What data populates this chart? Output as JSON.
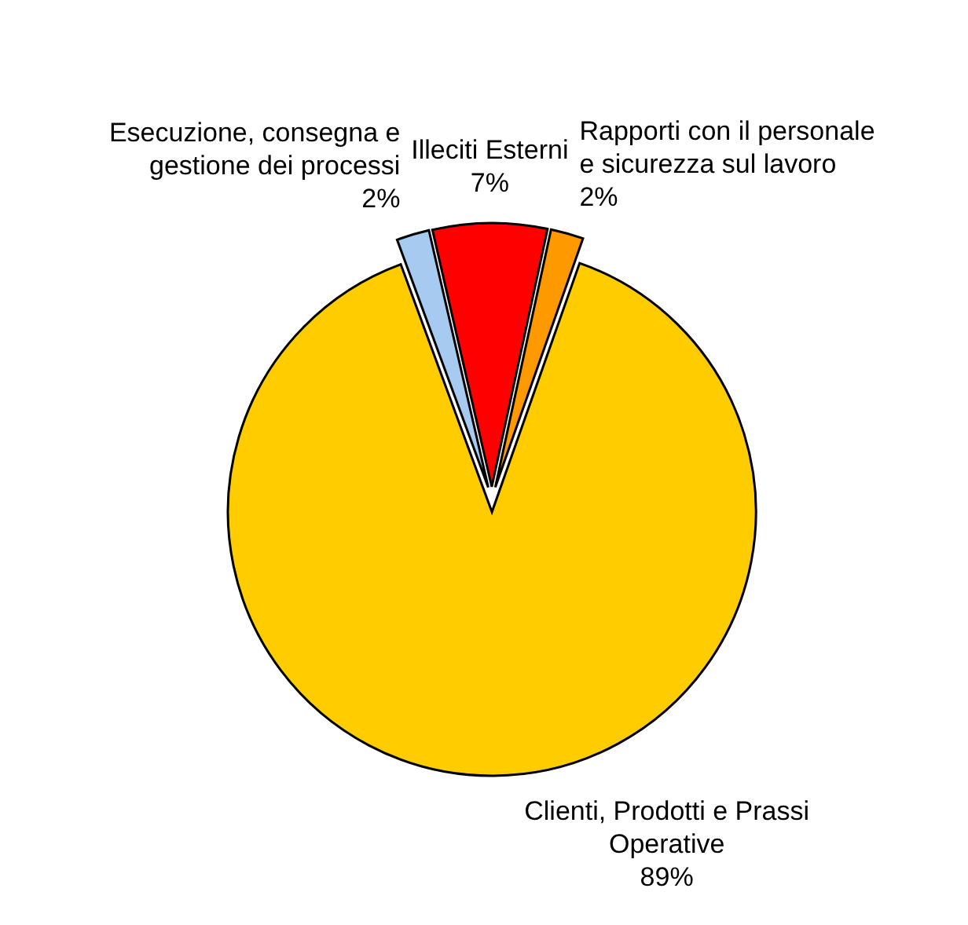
{
  "chart_data": {
    "type": "pie",
    "categories": [
      "Illeciti Esterni",
      "Rapporti con il personale e sicurezza sul lavoro",
      "Clienti, Prodotti e Prassi Operative",
      "Esecuzione, consegna e gestione dei processi"
    ],
    "values": [
      7,
      2,
      89,
      2
    ],
    "colors": [
      "#ff0000",
      "#ff9900",
      "#ffcc00",
      "#a6caf0"
    ],
    "value_labels": [
      "7%",
      "2%",
      "89%",
      "2%"
    ]
  }
}
